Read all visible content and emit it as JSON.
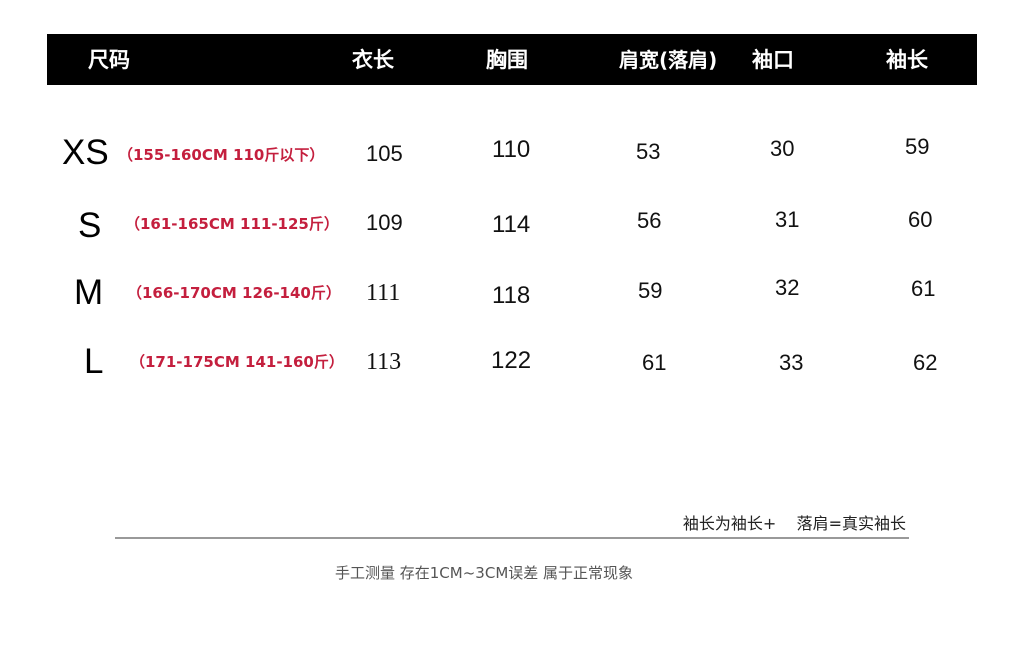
{
  "header": {
    "size": "尺码",
    "length": "衣长",
    "chest": "胸围",
    "shoulder": "肩宽(落肩)",
    "cuff": "袖口",
    "sleeve": "袖长"
  },
  "rows": [
    {
      "size": "XS",
      "range": "（155-160CM 110斤以下）",
      "length": "105",
      "chest": "110",
      "shoulder": "53",
      "cuff": "30",
      "sleeve": "59"
    },
    {
      "size": "S",
      "range": "（161-165CM 111-125斤）",
      "length": "109",
      "chest": "114",
      "shoulder": "56",
      "cuff": "31",
      "sleeve": "60"
    },
    {
      "size": "M",
      "range": "（166-170CM 126-140斤）",
      "length": "111",
      "chest": "118",
      "shoulder": "59",
      "cuff": "32",
      "sleeve": "61"
    },
    {
      "size": "L",
      "range": "（171-175CM 141-160斤）",
      "length": "113",
      "chest": "122",
      "shoulder": "61",
      "cuff": "33",
      "sleeve": "62"
    }
  ],
  "note": "袖长为袖长+    落肩=真实袖长",
  "footer": "手工测量 存在1CM~3CM误差 属于正常现象",
  "colors": {
    "header_bg": "#000000",
    "range_text": "#c41f3e"
  }
}
